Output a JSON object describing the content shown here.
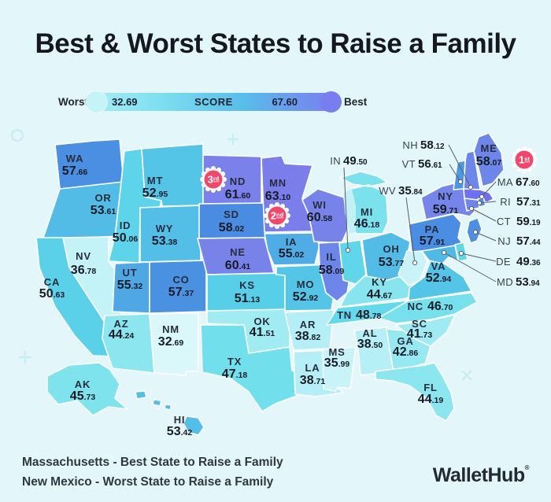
{
  "title": "Best & Worst States to Raise a Family",
  "legend": {
    "worst_label": "Worst",
    "best_label": "Best",
    "score_label": "SCORE",
    "min": "32.69",
    "max": "67.60"
  },
  "colors": {
    "background": "#e3f6f9",
    "badge_pink": "#f0476b",
    "text_dark": "#1f2430",
    "state_border": "#ffffff",
    "connector": "#5a5f6b",
    "decoration": "#c7eef4",
    "scale": [
      [
        "32.69",
        "#daf8fa"
      ],
      [
        "36",
        "#c8f3f8"
      ],
      [
        "39",
        "#b3eef6"
      ],
      [
        "42",
        "#9deaf3"
      ],
      [
        "44.5",
        "#8ae5f0"
      ],
      [
        "46.5",
        "#78e1ed"
      ],
      [
        "48.5",
        "#66daeb"
      ],
      [
        "50.5",
        "#5ad2e9"
      ],
      [
        "52.5",
        "#55c9e8"
      ],
      [
        "54",
        "#51b8e6"
      ],
      [
        "55.5",
        "#4fa6e4"
      ],
      [
        "57",
        "#4b93e2"
      ],
      [
        "58.04",
        "#4a8ce2"
      ],
      [
        "58.06",
        "#6d86e9"
      ],
      [
        "59.5",
        "#7485ea"
      ],
      [
        "61",
        "#7a82ea"
      ],
      [
        "63.5",
        "#7a7cea"
      ],
      [
        "67.6",
        "#6f70ee"
      ]
    ]
  },
  "chart_data": {
    "type": "choropleth",
    "title": "Best & Worst States to Raise a Family",
    "metric": "SCORE",
    "score_min": 32.69,
    "score_max": 67.6,
    "states": [
      {
        "abbr": "WA",
        "score": "57.66"
      },
      {
        "abbr": "OR",
        "score": "53.61"
      },
      {
        "abbr": "CA",
        "score": "50.63"
      },
      {
        "abbr": "NV",
        "score": "36.78"
      },
      {
        "abbr": "ID",
        "score": "50.06"
      },
      {
        "abbr": "MT",
        "score": "52.95"
      },
      {
        "abbr": "WY",
        "score": "53.38"
      },
      {
        "abbr": "UT",
        "score": "55.32"
      },
      {
        "abbr": "CO",
        "score": "57.37"
      },
      {
        "abbr": "AZ",
        "score": "44.24"
      },
      {
        "abbr": "NM",
        "score": "32.69"
      },
      {
        "abbr": "ND",
        "score": "61.60"
      },
      {
        "abbr": "SD",
        "score": "58.02"
      },
      {
        "abbr": "NE",
        "score": "60.41"
      },
      {
        "abbr": "KS",
        "score": "51.13"
      },
      {
        "abbr": "OK",
        "score": "41.51"
      },
      {
        "abbr": "TX",
        "score": "47.18"
      },
      {
        "abbr": "MN",
        "score": "63.10"
      },
      {
        "abbr": "IA",
        "score": "55.02"
      },
      {
        "abbr": "MO",
        "score": "52.92"
      },
      {
        "abbr": "AR",
        "score": "38.82"
      },
      {
        "abbr": "LA",
        "score": "38.71"
      },
      {
        "abbr": "WI",
        "score": "60.58"
      },
      {
        "abbr": "IL",
        "score": "58.09"
      },
      {
        "abbr": "MS",
        "score": "35.99"
      },
      {
        "abbr": "AL",
        "score": "38.50"
      },
      {
        "abbr": "GA",
        "score": "42.86"
      },
      {
        "abbr": "FL",
        "score": "44.19"
      },
      {
        "abbr": "TN",
        "score": "48.78"
      },
      {
        "abbr": "KY",
        "score": "44.67"
      },
      {
        "abbr": "IN",
        "score": "49.50"
      },
      {
        "abbr": "MI",
        "score": "46.18"
      },
      {
        "abbr": "OH",
        "score": "53.77"
      },
      {
        "abbr": "WV",
        "score": "35.84"
      },
      {
        "abbr": "VA",
        "score": "52.94"
      },
      {
        "abbr": "NC",
        "score": "46.70"
      },
      {
        "abbr": "SC",
        "score": "41.73"
      },
      {
        "abbr": "PA",
        "score": "57.91"
      },
      {
        "abbr": "NY",
        "score": "59.71"
      },
      {
        "abbr": "NH",
        "score": "58.12"
      },
      {
        "abbr": "VT",
        "score": "56.61"
      },
      {
        "abbr": "ME",
        "score": "58.07"
      },
      {
        "abbr": "MA",
        "score": "67.60"
      },
      {
        "abbr": "RI",
        "score": "57.31"
      },
      {
        "abbr": "CT",
        "score": "59.19"
      },
      {
        "abbr": "NJ",
        "score": "57.44"
      },
      {
        "abbr": "DE",
        "score": "49.36"
      },
      {
        "abbr": "MD",
        "score": "53.94"
      },
      {
        "abbr": "AK",
        "score": "45.73"
      },
      {
        "abbr": "HI",
        "score": "53.42"
      }
    ],
    "rank_badges": [
      {
        "rank": "1",
        "suffix": "st",
        "state": "MA"
      },
      {
        "rank": "2",
        "suffix": "nd",
        "state": "MN"
      },
      {
        "rank": "3",
        "suffix": "rd",
        "state": "ND"
      }
    ]
  },
  "footer": {
    "line1_state": "Massachusetts",
    "line1_rest": "- Best State to Raise a Family",
    "line2_state": "New Mexico",
    "line2_rest": "- Worst State to Raise a Family"
  },
  "logo": {
    "text": "WalletHub",
    "mark": "®"
  }
}
